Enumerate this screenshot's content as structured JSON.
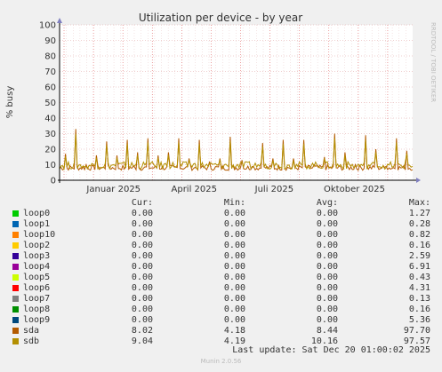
{
  "chart_data": {
    "type": "line",
    "title": "Utilization per device - by year",
    "ylabel": "% busy",
    "ylim": [
      0,
      100
    ],
    "yticks": [
      0,
      10,
      20,
      30,
      40,
      50,
      60,
      70,
      80,
      90,
      100
    ],
    "xtick_labels": [
      "Januar 2025",
      "April 2025",
      "Juli 2025",
      "Oktober 2025"
    ],
    "grid": true,
    "side_label": "RRDTOOL / TOBI OETIKER",
    "series": [
      {
        "name": "loop0",
        "color": "#00cc00",
        "cur": "0.00",
        "min": "0.00",
        "avg": "0.00",
        "max": "1.27"
      },
      {
        "name": "loop1",
        "color": "#0066b3",
        "cur": "0.00",
        "min": "0.00",
        "avg": "0.00",
        "max": "0.28"
      },
      {
        "name": "loop10",
        "color": "#ff8000",
        "cur": "0.00",
        "min": "0.00",
        "avg": "0.00",
        "max": "0.82"
      },
      {
        "name": "loop2",
        "color": "#ffcc00",
        "cur": "0.00",
        "min": "0.00",
        "avg": "0.00",
        "max": "0.16"
      },
      {
        "name": "loop3",
        "color": "#330099",
        "cur": "0.00",
        "min": "0.00",
        "avg": "0.00",
        "max": "2.59"
      },
      {
        "name": "loop4",
        "color": "#990099",
        "cur": "0.00",
        "min": "0.00",
        "avg": "0.00",
        "max": "6.91"
      },
      {
        "name": "loop5",
        "color": "#ccff00",
        "cur": "0.00",
        "min": "0.00",
        "avg": "0.00",
        "max": "0.43"
      },
      {
        "name": "loop6",
        "color": "#ff0000",
        "cur": "0.00",
        "min": "0.00",
        "avg": "0.00",
        "max": "4.31"
      },
      {
        "name": "loop7",
        "color": "#808080",
        "cur": "0.00",
        "min": "0.00",
        "avg": "0.00",
        "max": "0.13"
      },
      {
        "name": "loop8",
        "color": "#008f00",
        "cur": "0.00",
        "min": "0.00",
        "avg": "0.00",
        "max": "0.16"
      },
      {
        "name": "loop9",
        "color": "#00487d",
        "cur": "0.00",
        "min": "0.00",
        "avg": "0.00",
        "max": "5.36"
      },
      {
        "name": "sda",
        "color": "#b35a00",
        "cur": "8.02",
        "min": "4.18",
        "avg": "8.44",
        "max": "97.70"
      },
      {
        "name": "sdb",
        "color": "#b38f00",
        "cur": "9.04",
        "min": "4.19",
        "avg": "10.16",
        "max": "97.57"
      }
    ]
  },
  "legend_header": {
    "cur": "Cur:",
    "min": "Min:",
    "avg": "Avg:",
    "max": "Max:"
  },
  "last_update": "Last update: Sat Dec 20 01:00:02 2025",
  "footer": "Munin 2.0.56"
}
